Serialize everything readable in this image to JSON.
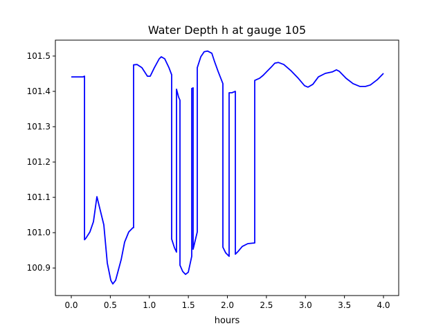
{
  "chart_data": {
    "type": "line",
    "title": "Water Depth h at gauge 105",
    "xlabel": "hours",
    "ylabel": "",
    "xlim": [
      -0.204,
      4.195
    ],
    "ylim": [
      100.822,
      101.545
    ],
    "xticks": [
      0.0,
      0.5,
      1.0,
      1.5,
      2.0,
      2.5,
      3.0,
      3.5,
      4.0
    ],
    "xtick_labels": [
      "0.0",
      "0.5",
      "1.0",
      "1.5",
      "2.0",
      "2.5",
      "3.0",
      "3.5",
      "4.0"
    ],
    "yticks": [
      100.9,
      101.0,
      101.1,
      101.2,
      101.3,
      101.4,
      101.5
    ],
    "ytick_labels": [
      "100.9",
      "101.0",
      "101.1",
      "101.2",
      "101.3",
      "101.4",
      "101.5"
    ],
    "grid": false,
    "series": [
      {
        "name": "h",
        "color": "#0000ff",
        "x": [
          0,
          0.151,
          0.169,
          0.169,
          0.186,
          0.239,
          0.284,
          0.328,
          0.417,
          0.461,
          0.506,
          0.532,
          0.568,
          0.639,
          0.683,
          0.736,
          0.789,
          0.798,
          0.798,
          0.843,
          0.905,
          0.976,
          1.011,
          1.064,
          1.126,
          1.153,
          1.197,
          1.251,
          1.286,
          1.286,
          1.322,
          1.348,
          1.348,
          1.375,
          1.392,
          1.392,
          1.428,
          1.463,
          1.499,
          1.543,
          1.543,
          1.561,
          1.561,
          1.614,
          1.614,
          1.659,
          1.703,
          1.747,
          1.8,
          1.836,
          1.88,
          1.942,
          1.942,
          1.978,
          2.022,
          2.022,
          2.058,
          2.102,
          2.102,
          2.137,
          2.191,
          2.262,
          2.35,
          2.35,
          2.412,
          2.457,
          2.501,
          2.563,
          2.608,
          2.652,
          2.723,
          2.812,
          2.9,
          2.989,
          3.033,
          3.095,
          3.166,
          3.255,
          3.344,
          3.397,
          3.432,
          3.521,
          3.61,
          3.698,
          3.769,
          3.831,
          3.92,
          4.0
        ],
        "y": [
          101.441,
          101.441,
          101.443,
          100.98,
          100.984,
          101.002,
          101.031,
          101.102,
          101.022,
          100.914,
          100.865,
          100.855,
          100.865,
          100.924,
          100.973,
          101.002,
          101.014,
          101.014,
          101.475,
          101.476,
          101.467,
          101.443,
          101.443,
          101.467,
          101.492,
          101.498,
          101.492,
          101.467,
          101.447,
          100.982,
          100.957,
          100.945,
          101.406,
          101.384,
          101.375,
          100.908,
          100.89,
          100.882,
          100.888,
          100.933,
          101.408,
          101.41,
          100.953,
          101.002,
          101.467,
          101.498,
          101.512,
          101.514,
          101.508,
          101.484,
          101.457,
          101.422,
          100.959,
          100.943,
          100.933,
          101.396,
          101.396,
          101.4,
          100.939,
          100.947,
          100.961,
          100.969,
          100.971,
          101.431,
          101.437,
          101.445,
          101.455,
          101.469,
          101.48,
          101.482,
          101.476,
          101.459,
          101.439,
          101.416,
          101.412,
          101.42,
          101.441,
          101.451,
          101.455,
          101.461,
          101.457,
          101.437,
          101.422,
          101.414,
          101.414,
          101.418,
          101.433,
          101.451
        ]
      }
    ]
  }
}
